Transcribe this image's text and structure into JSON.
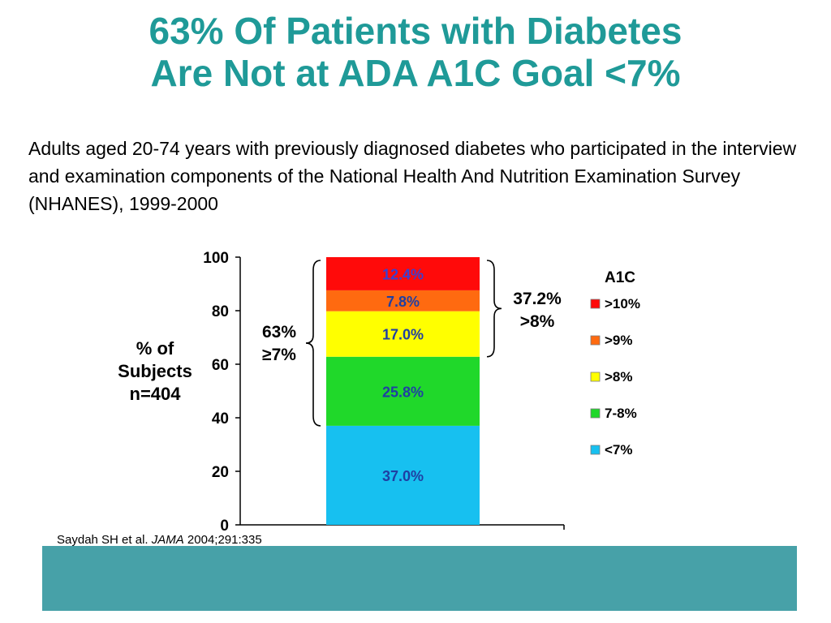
{
  "slide": {
    "title_line1": "63% Of Patients with Diabetes",
    "title_line2": "Are Not at ADA A1C Goal <7%",
    "description": "Adults aged 20-74 years with previously diagnosed diabetes who participated in the interview and examination components of the National Health And Nutrition Examination Survey (NHANES), 1999-2000",
    "source_prefix": "Saydah SH et al. ",
    "source_journal": "JAMA",
    "source_suffix": " 2004;291:335"
  },
  "chart_data": {
    "type": "bar",
    "stacked": true,
    "title": "",
    "ylabel_lines": [
      "% of",
      "Subjects",
      "n=404"
    ],
    "ylim": [
      0,
      100
    ],
    "yticks": [
      0,
      20,
      40,
      60,
      80,
      100
    ],
    "series": [
      {
        "name": "<7%",
        "value": 37.0,
        "label": "37.0%",
        "color": "#17c0f0",
        "label_color": "#1f3fa3"
      },
      {
        "name": "7-8%",
        "value": 25.8,
        "label": "25.8%",
        "color": "#20d82a",
        "label_color": "#1f3fa3"
      },
      {
        "name": ">8%",
        "value": 17.0,
        "label": "17.0%",
        "color": "#ffff00",
        "label_color": "#1f3fa3"
      },
      {
        "name": ">9%",
        "value": 7.8,
        "label": "7.8%",
        "color": "#ff6a10",
        "label_color": "#1f3fa3"
      },
      {
        "name": ">10%",
        "value": 12.4,
        "label": "12.4%",
        "color": "#ff0a0a",
        "label_color": "#3a3fd0"
      }
    ],
    "legend": {
      "title": "A1C",
      "position": "right",
      "order": [
        ">10%",
        ">9%",
        ">8%",
        "7-8%",
        "<7%"
      ]
    },
    "annotations": {
      "left_brace": {
        "from": 37.0,
        "to": 100,
        "lines": [
          "63%",
          "≥7%"
        ]
      },
      "right_brace": {
        "from": 62.8,
        "to": 100,
        "lines": [
          "37.2%",
          ">8%"
        ]
      }
    }
  }
}
